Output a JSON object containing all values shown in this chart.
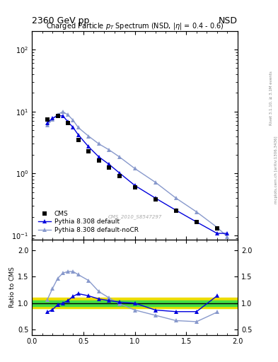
{
  "title_top": "2360 GeV pp",
  "title_top_right": "NSD",
  "plot_title": "Charged Particle p$_T$ Spectrum (NSD, $\\eta$| = 0.4 - 0.6)",
  "watermark": "CMS_2010_S8547297",
  "right_label_top": "Rivet 3.1.10, ≥ 3.1M events",
  "right_label_bot": "mcplots.cern.ch [arXiv:1306.3436]",
  "cms_x": [
    0.15,
    0.25,
    0.35,
    0.45,
    0.55,
    0.65,
    0.75,
    0.85,
    1.0,
    1.2,
    1.4,
    1.6,
    1.8
  ],
  "cms_y": [
    7.5,
    8.5,
    6.5,
    3.5,
    2.3,
    1.6,
    1.25,
    0.9,
    0.6,
    0.38,
    0.25,
    0.165,
    0.13
  ],
  "py_def_x": [
    0.15,
    0.2,
    0.25,
    0.3,
    0.35,
    0.4,
    0.45,
    0.55,
    0.65,
    0.75,
    0.85,
    1.0,
    1.2,
    1.4,
    1.6,
    1.8,
    1.9
  ],
  "py_def_y": [
    6.5,
    7.8,
    8.5,
    8.5,
    6.8,
    5.5,
    4.2,
    2.7,
    1.85,
    1.4,
    1.02,
    0.64,
    0.4,
    0.255,
    0.165,
    0.108,
    0.108
  ],
  "py_nocr_x": [
    0.15,
    0.2,
    0.25,
    0.3,
    0.35,
    0.4,
    0.45,
    0.55,
    0.65,
    0.75,
    0.85,
    1.0,
    1.2,
    1.4,
    1.6,
    1.8,
    1.9
  ],
  "py_nocr_y": [
    6.0,
    7.5,
    9.0,
    9.9,
    8.8,
    7.2,
    5.5,
    4.0,
    3.0,
    2.4,
    1.85,
    1.2,
    0.72,
    0.4,
    0.24,
    0.135,
    0.095
  ],
  "ratio_band_inner": 0.05,
  "ratio_band_outer": 0.1,
  "ratio_def_x": [
    0.15,
    0.2,
    0.25,
    0.3,
    0.35,
    0.4,
    0.45,
    0.55,
    0.65,
    0.75,
    0.85,
    1.0,
    1.2,
    1.4,
    1.6,
    1.8,
    1.9
  ],
  "ratio_def_y": [
    0.83,
    0.88,
    0.97,
    1.0,
    1.05,
    1.13,
    1.18,
    1.14,
    1.08,
    1.05,
    1.02,
    1.0,
    0.87,
    0.84,
    0.84,
    1.14,
    null
  ],
  "ratio_nocr_x": [
    0.15,
    0.2,
    0.25,
    0.3,
    0.35,
    0.4,
    0.45,
    0.55,
    0.65,
    0.75,
    0.85,
    1.0,
    1.2,
    1.4,
    1.6,
    1.8,
    1.9
  ],
  "ratio_nocr_y": [
    1.07,
    1.28,
    1.47,
    1.57,
    1.6,
    1.6,
    1.54,
    1.43,
    1.22,
    1.1,
    0.99,
    0.87,
    0.77,
    0.67,
    0.65,
    0.83,
    null
  ],
  "color_cms": "#000000",
  "color_def": "#0000dd",
  "color_nocr": "#8899cc",
  "color_green": "#44dd44",
  "color_yellow": "#eedd00",
  "xlim": [
    0.0,
    2.0
  ],
  "ylim_main": [
    0.085,
    200
  ],
  "ylim_ratio": [
    0.4,
    2.2
  ],
  "ratio_yticks": [
    0.5,
    1.0,
    1.5,
    2.0
  ]
}
